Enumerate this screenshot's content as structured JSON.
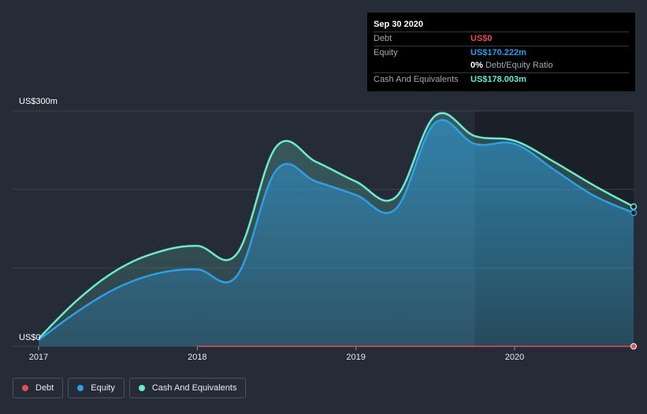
{
  "tooltip": {
    "date": "Sep 30 2020",
    "debt_label": "Debt",
    "debt_value": "US$0",
    "equity_label": "Equity",
    "equity_value": "US$170.222m",
    "ratio_value": "0%",
    "ratio_label": "Debt/Equity Ratio",
    "cash_label": "Cash And Equivalents",
    "cash_value": "US$178.003m"
  },
  "legend": {
    "debt": "Debt",
    "equity": "Equity",
    "cash": "Cash And Equivalents"
  },
  "colors": {
    "debt": "#e64b5d",
    "equity": "#2e9ee6",
    "cash": "#6ee8cf",
    "background": "#252c38",
    "highlight_bg": "#1b1f28"
  },
  "chart_data": {
    "type": "area",
    "title": "",
    "xlabel": "",
    "ylabel": "",
    "y_top_label": "US$300m",
    "y_bottom_label": "US$0",
    "ylim": [
      0,
      300
    ],
    "xlim": [
      2017.0,
      2020.75
    ],
    "x_tick_labels": [
      "2017",
      "2018",
      "2019",
      "2020"
    ],
    "x_ticks": [
      2017,
      2018,
      2019,
      2020
    ],
    "highlight_range": [
      2019.75,
      2020.75
    ],
    "series": [
      {
        "name": "Cash And Equivalents",
        "x": [
          2017.0,
          2017.25,
          2017.5,
          2017.75,
          2018.0,
          2018.25,
          2018.5,
          2018.75,
          2019.0,
          2019.25,
          2019.5,
          2019.75,
          2020.0,
          2020.25,
          2020.5,
          2020.75
        ],
        "values": [
          10,
          60,
          98,
          120,
          128,
          118,
          255,
          235,
          210,
          190,
          294,
          268,
          262,
          235,
          205,
          178
        ]
      },
      {
        "name": "Equity",
        "x": [
          2017.0,
          2017.25,
          2017.5,
          2017.75,
          2018.0,
          2018.25,
          2018.5,
          2018.75,
          2019.0,
          2019.25,
          2019.5,
          2019.75,
          2020.0,
          2020.25,
          2020.5,
          2020.75
        ],
        "values": [
          8,
          45,
          75,
          93,
          98,
          90,
          225,
          210,
          193,
          175,
          285,
          258,
          258,
          225,
          192,
          170.222
        ]
      },
      {
        "name": "Debt",
        "x": [
          2018.0,
          2018.25,
          2018.5,
          2018.75,
          2019.0,
          2019.25,
          2019.5,
          2019.75,
          2020.0,
          2020.25,
          2020.5,
          2020.75
        ],
        "values": [
          0,
          0,
          0,
          0,
          0,
          0,
          0,
          0,
          0,
          0,
          0,
          0
        ]
      }
    ]
  }
}
